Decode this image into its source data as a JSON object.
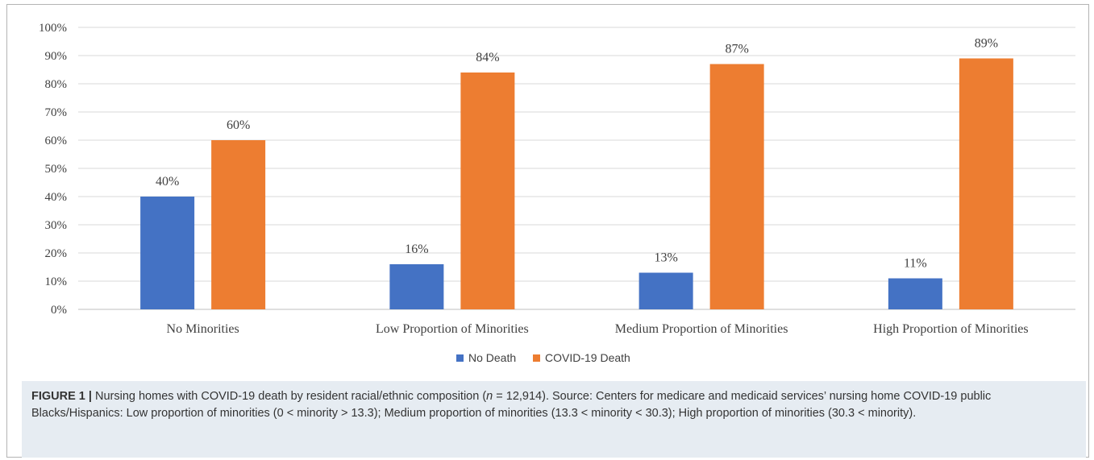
{
  "chart_data": {
    "type": "bar",
    "categories": [
      "No Minorities",
      "Low Proportion of Minorities",
      "Medium Proportion of Minorities",
      "High Proportion of Minorities"
    ],
    "series": [
      {
        "name": "No Death",
        "color": "#4472c4",
        "values": [
          40,
          16,
          13,
          11
        ],
        "labels": [
          "40%",
          "16%",
          "13%",
          "11%"
        ]
      },
      {
        "name": "COVID-19 Death",
        "color": "#ed7d31",
        "values": [
          60,
          84,
          87,
          89
        ],
        "labels": [
          "60%",
          "84%",
          "87%",
          "89%"
        ]
      }
    ],
    "ylim": [
      0,
      100
    ],
    "yticks": [
      "0%",
      "10%",
      "20%",
      "30%",
      "40%",
      "50%",
      "60%",
      "70%",
      "80%",
      "90%",
      "100%"
    ],
    "grid": true,
    "legend_position": "bottom"
  },
  "caption": {
    "label": "FIGURE 1 |",
    "text_before_n": " Nursing homes with COVID-19 death by resident racial/ethnic composition (",
    "n_symbol": "n",
    "text_after_n": " = 12,914). Source: Centers for medicare and medicaid services’ nursing home COVID-19 public Blacks/Hispanics: Low proportion of minorities (0 < minority > 13.3); Medium proportion of minorities (13.3 < minority < 30.3); High proportion of minorities (30.3 < minority)."
  }
}
